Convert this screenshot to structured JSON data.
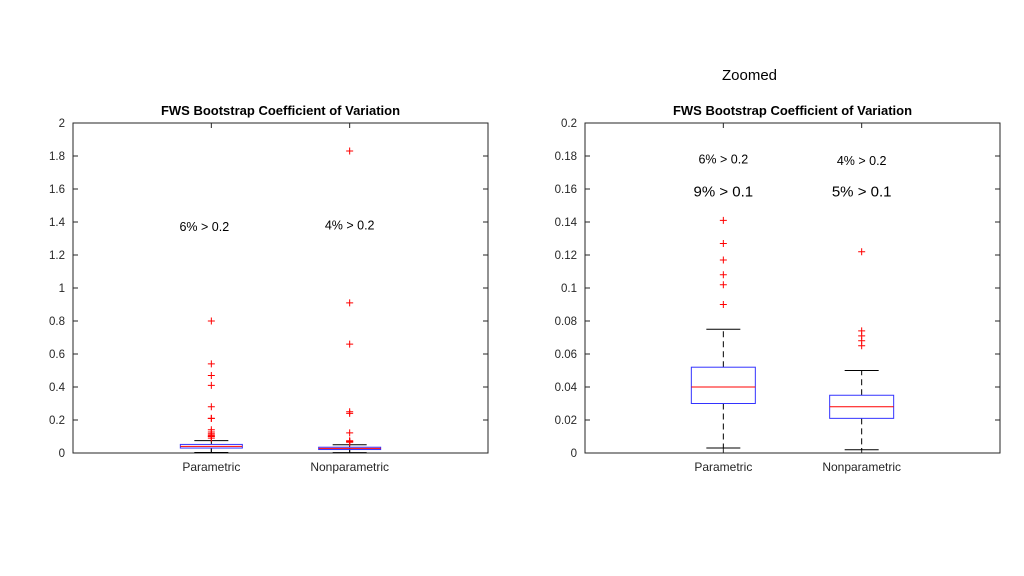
{
  "slide": {
    "zoomed_label": "Zoomed"
  },
  "chart_data": [
    {
      "type": "box",
      "title": "FWS Bootstrap Coefficient of Variation",
      "xlabel": "",
      "ylabel": "",
      "ylim": [
        0,
        2
      ],
      "yticks": [
        0,
        0.2,
        0.4,
        0.6,
        0.8,
        1,
        1.2,
        1.4,
        1.6,
        1.8,
        2
      ],
      "ytick_labels": [
        "0",
        "0.2",
        "0.4",
        "0.6",
        "0.8",
        "1",
        "1.2",
        "1.4",
        "1.6",
        "1.8",
        "2"
      ],
      "categories": [
        "Parametric",
        "Nonparametric"
      ],
      "boxes": [
        {
          "name": "Parametric",
          "whisker_low": 0.003,
          "q1": 0.03,
          "median": 0.04,
          "q3": 0.052,
          "whisker_high": 0.075,
          "outliers": [
            0.09,
            0.1,
            0.102,
            0.108,
            0.117,
            0.127,
            0.141,
            0.21,
            0.21,
            0.28,
            0.41,
            0.47,
            0.54,
            0.8
          ]
        },
        {
          "name": "Nonparametric",
          "whisker_low": 0.002,
          "q1": 0.021,
          "median": 0.028,
          "q3": 0.035,
          "whisker_high": 0.05,
          "outliers": [
            0.065,
            0.068,
            0.071,
            0.074,
            0.122,
            0.24,
            0.25,
            0.66,
            0.91,
            1.83
          ]
        }
      ],
      "annotations": [
        {
          "text": "6% > 0.2",
          "x_category": "Parametric",
          "y": 1.37
        },
        {
          "text": "4% > 0.2",
          "x_category": "Nonparametric",
          "y": 1.38
        }
      ]
    },
    {
      "type": "box",
      "title": "FWS Bootstrap Coefficient of Variation",
      "xlabel": "",
      "ylabel": "",
      "ylim": [
        0,
        0.2
      ],
      "yticks": [
        0,
        0.02,
        0.04,
        0.06,
        0.08,
        0.1,
        0.12,
        0.14,
        0.16,
        0.18,
        0.2
      ],
      "ytick_labels": [
        "0",
        "0.02",
        "0.04",
        "0.06",
        "0.08",
        "0.1",
        "0.12",
        "0.14",
        "0.16",
        "0.18",
        "0.2"
      ],
      "categories": [
        "Parametric",
        "Nonparametric"
      ],
      "boxes": [
        {
          "name": "Parametric",
          "whisker_low": 0.003,
          "q1": 0.03,
          "median": 0.04,
          "q3": 0.052,
          "whisker_high": 0.075,
          "outliers": [
            0.09,
            0.102,
            0.108,
            0.117,
            0.127,
            0.141
          ]
        },
        {
          "name": "Nonparametric",
          "whisker_low": 0.002,
          "q1": 0.021,
          "median": 0.028,
          "q3": 0.035,
          "whisker_high": 0.05,
          "outliers": [
            0.065,
            0.068,
            0.071,
            0.074,
            0.122
          ]
        }
      ],
      "annotations": [
        {
          "text": "6% > 0.2",
          "x_category": "Parametric",
          "y": 0.178
        },
        {
          "text": "4% > 0.2",
          "x_category": "Nonparametric",
          "y": 0.177
        },
        {
          "text": "9% > 0.1",
          "x_category": "Parametric",
          "y": 0.158
        },
        {
          "text": "5% > 0.1",
          "x_category": "Nonparametric",
          "y": 0.158
        }
      ]
    }
  ],
  "colors": {
    "box": "#3333ff",
    "median": "#ff0000",
    "outlier": "#ff0000",
    "whisker": "#000000",
    "axes": "#262626"
  }
}
